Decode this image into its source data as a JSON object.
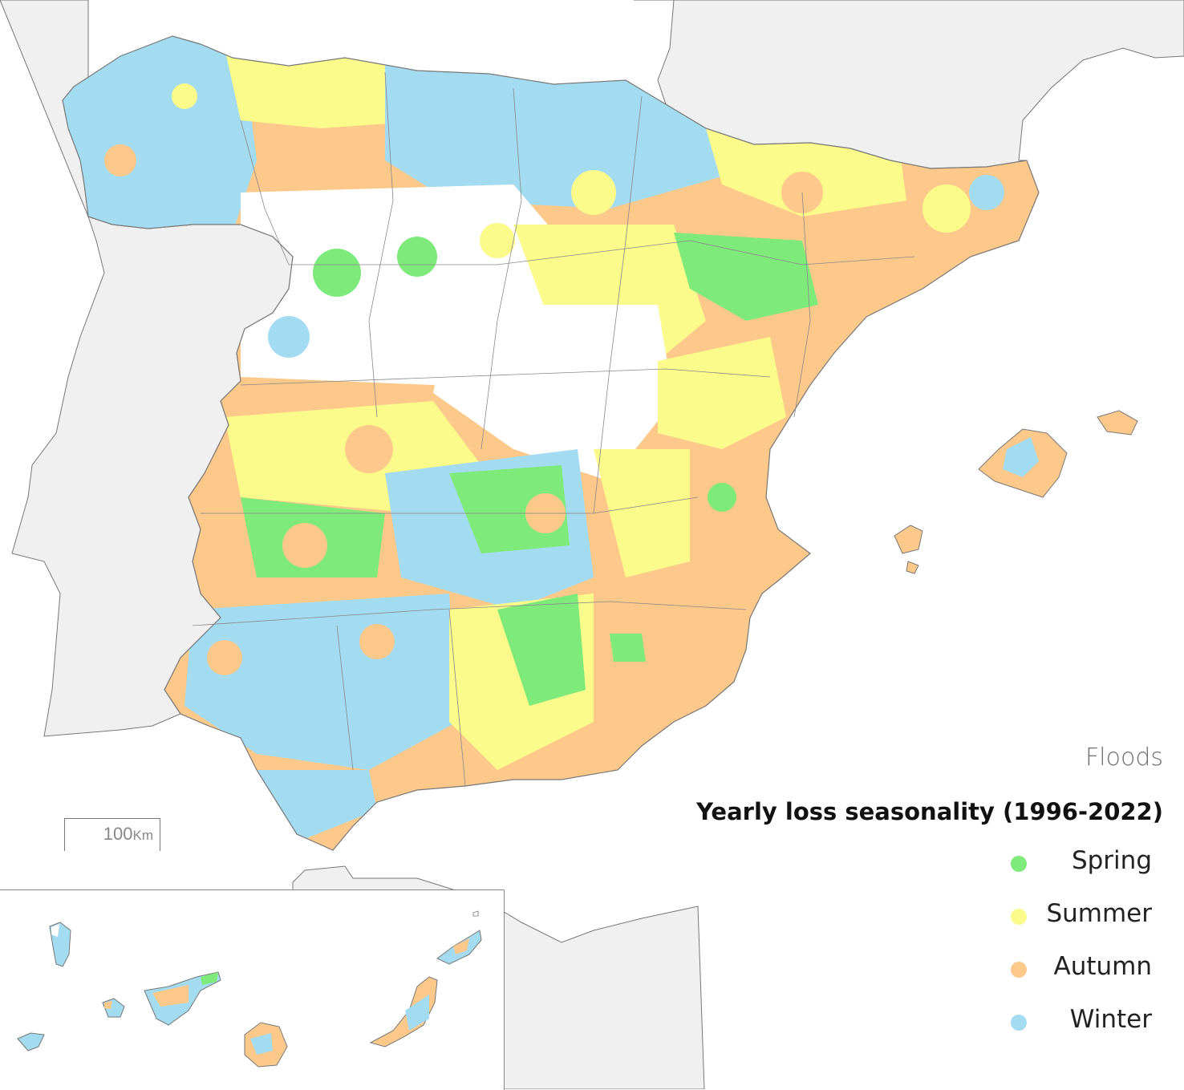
{
  "legend": {
    "subtitle": "Floods",
    "title": "Yearly loss seasonality (1996-2022)",
    "items": [
      {
        "label": "Spring",
        "color": "#7eea7a"
      },
      {
        "label": "Summer",
        "color": "#fbfb8c"
      },
      {
        "label": "Autumn",
        "color": "#fcc98a"
      },
      {
        "label": "Winter",
        "color": "#a3dcf0"
      }
    ]
  },
  "scale": {
    "value": "100",
    "unit": "Km"
  },
  "map": {
    "land_color": "#f0f0f0",
    "border_color": "#777777",
    "no_data_color": "#ffffff"
  }
}
